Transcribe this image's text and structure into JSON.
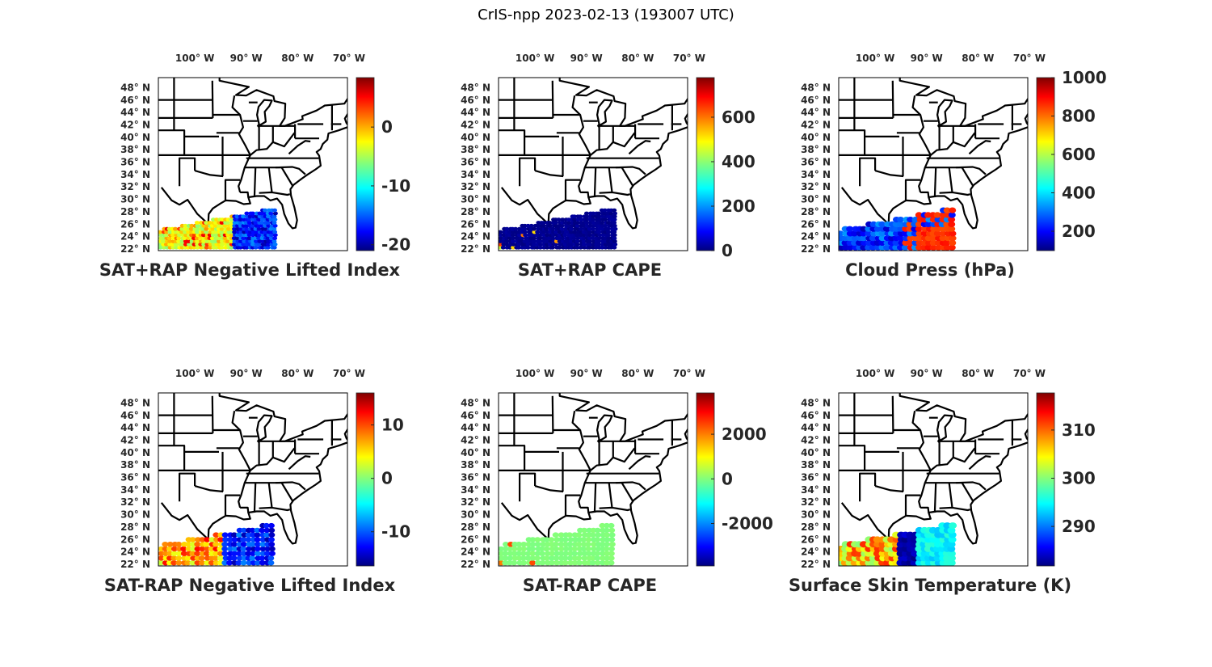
{
  "figure_title": "CrIS-npp 2023-02-13 (193007 UTC)",
  "lon_ticks": [
    "100° W",
    "90° W",
    "80° W",
    "70° W"
  ],
  "lat_ticks": [
    "48° N",
    "46° N",
    "44° N",
    "42° N",
    "40° N",
    "38° N",
    "36° N",
    "34° N",
    "32° N",
    "30° N",
    "28° N",
    "26° N",
    "24° N",
    "22° N"
  ],
  "colormap": "jet",
  "panels": [
    {
      "title": "SAT+RAP Negative Lifted Index",
      "clim": [
        -21,
        8.4
      ],
      "cbar_ticks": [
        {
          "v": 0,
          "label": "0"
        },
        {
          "v": -10,
          "label": "-10"
        },
        {
          "v": -20,
          "label": "-20"
        }
      ]
    },
    {
      "title": "SAT+RAP CAPE",
      "clim": [
        0,
        778
      ],
      "cbar_ticks": [
        {
          "v": 600,
          "label": "600"
        },
        {
          "v": 400,
          "label": "400"
        },
        {
          "v": 200,
          "label": "200"
        },
        {
          "v": 0,
          "label": "0"
        }
      ]
    },
    {
      "title": "Cloud Press (hPa)",
      "clim": [
        99,
        1000
      ],
      "cbar_ticks": [
        {
          "v": 1000,
          "label": "1000"
        },
        {
          "v": 800,
          "label": "800"
        },
        {
          "v": 600,
          "label": "600"
        },
        {
          "v": 400,
          "label": "400"
        },
        {
          "v": 200,
          "label": "200"
        }
      ]
    },
    {
      "title": "SAT-RAP Negative Lifted Index",
      "clim": [
        -16.4,
        16
      ],
      "cbar_ticks": [
        {
          "v": 10,
          "label": "10"
        },
        {
          "v": 0,
          "label": "0"
        },
        {
          "v": -10,
          "label": "-10"
        }
      ]
    },
    {
      "title": "SAT-RAP CAPE",
      "clim": [
        -3900,
        3850
      ],
      "cbar_ticks": [
        {
          "v": 2000,
          "label": "2000"
        },
        {
          "v": 0,
          "label": "0"
        },
        {
          "v": -2000,
          "label": "-2000"
        }
      ]
    },
    {
      "title": "Surface Skin Temperature (K)",
      "clim": [
        281.8,
        317.7
      ],
      "cbar_ticks": [
        {
          "v": 310,
          "label": "310"
        },
        {
          "v": 300,
          "label": "300"
        },
        {
          "v": 290,
          "label": "290"
        }
      ]
    }
  ]
}
